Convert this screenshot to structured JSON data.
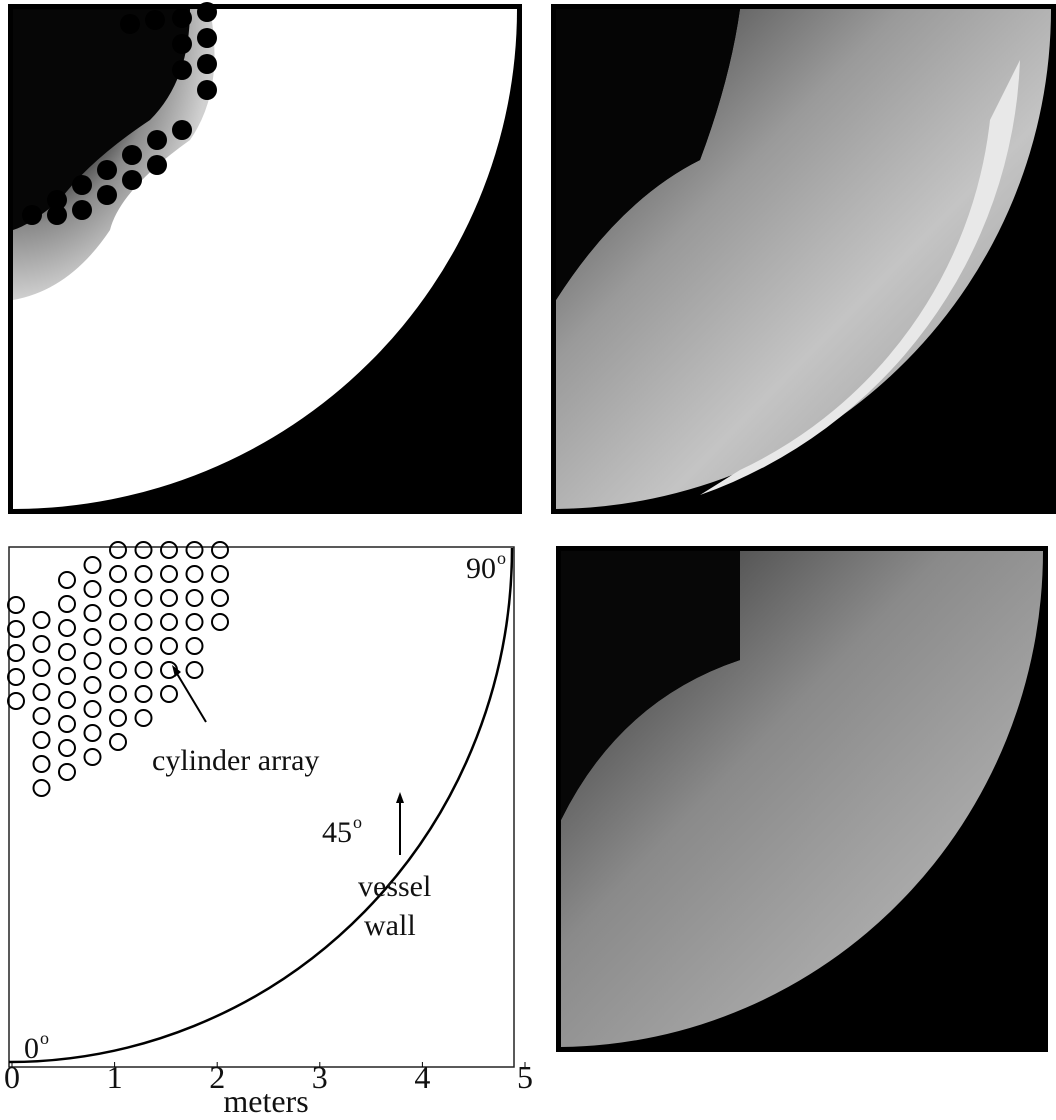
{
  "diagram": {
    "labels": {
      "cylinder_array": "cylinder array",
      "vessel": "vessel",
      "wall": "wall"
    },
    "angles": [
      {
        "text": "0",
        "sup": "o"
      },
      {
        "text": "45",
        "sup": "o"
      },
      {
        "text": "90",
        "sup": "o"
      }
    ],
    "axis": {
      "ticks": [
        0,
        1,
        2,
        3,
        4,
        5
      ],
      "title": "meters"
    }
  }
}
